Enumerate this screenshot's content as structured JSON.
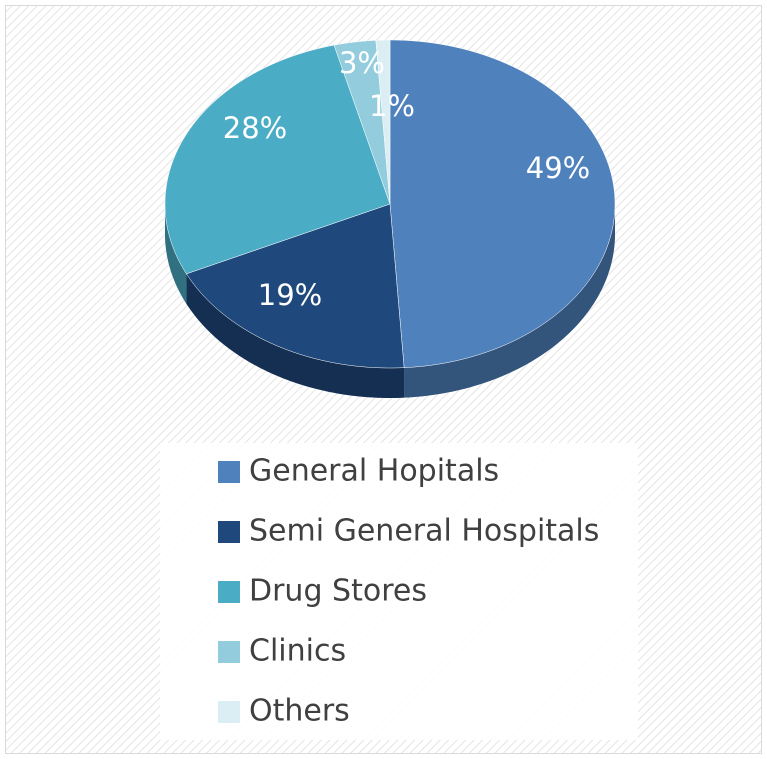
{
  "chart_data": {
    "type": "pie",
    "categories": [
      "General Hopitals",
      "Semi General Hospitals",
      "Drug Stores",
      "Clinics",
      "Others"
    ],
    "values": [
      49,
      19,
      28,
      3,
      1
    ],
    "value_labels": [
      "49%",
      "19%",
      "28%",
      "3%",
      "1%"
    ],
    "colors": [
      "#4f81bd",
      "#1f497d",
      "#4bacc6",
      "#93cddd",
      "#dbeef4"
    ],
    "legend": "bottom"
  }
}
